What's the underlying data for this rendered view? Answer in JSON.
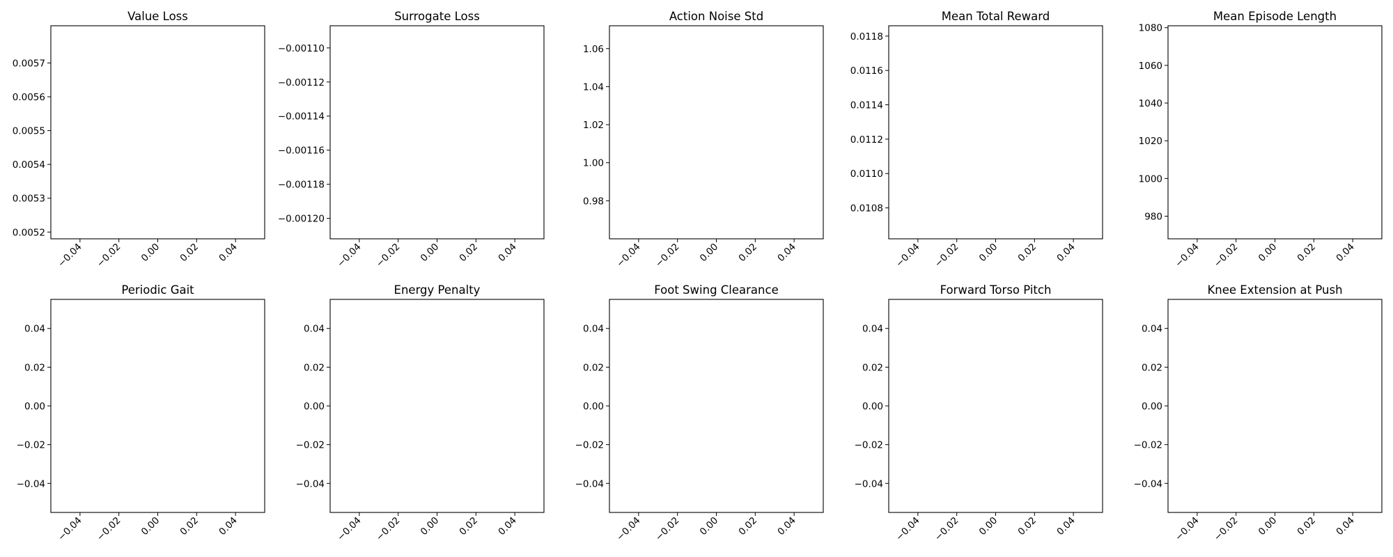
{
  "chart_data": [
    {
      "type": "line",
      "title": "Value Loss",
      "series": [],
      "xlim": [
        -0.055,
        0.055
      ],
      "xticks": [
        "−0.04",
        "−0.02",
        "0.00",
        "0.02",
        "0.04"
      ],
      "ylim": [
        0.00518,
        0.00581
      ],
      "yticks": [
        0.0052,
        0.0053,
        0.0054,
        0.0055,
        0.0056,
        0.0057
      ],
      "ytick_labels": [
        "0.0052",
        "0.0053",
        "0.0054",
        "0.0055",
        "0.0056",
        "0.0057"
      ],
      "grid": false
    },
    {
      "type": "line",
      "title": "Surrogate Loss",
      "series": [],
      "xlim": [
        -0.055,
        0.055
      ],
      "xticks": [
        "−0.04",
        "−0.02",
        "0.00",
        "0.02",
        "0.04"
      ],
      "ylim": [
        -0.001212,
        -0.001087
      ],
      "yticks": [
        -0.0011,
        -0.00112,
        -0.00114,
        -0.00116,
        -0.00118,
        -0.0012
      ],
      "ytick_labels": [
        "−0.00110",
        "−0.00112",
        "−0.00114",
        "−0.00116",
        "−0.00118",
        "−0.00120"
      ],
      "grid": false
    },
    {
      "type": "line",
      "title": "Action Noise Std",
      "series": [],
      "xlim": [
        -0.055,
        0.055
      ],
      "xticks": [
        "−0.04",
        "−0.02",
        "0.00",
        "0.02",
        "0.04"
      ],
      "ylim": [
        0.96,
        1.072
      ],
      "yticks": [
        0.98,
        1.0,
        1.02,
        1.04,
        1.06
      ],
      "ytick_labels": [
        "0.98",
        "1.00",
        "1.02",
        "1.04",
        "1.06"
      ],
      "grid": false
    },
    {
      "type": "line",
      "title": "Mean Total Reward",
      "series": [],
      "xlim": [
        -0.055,
        0.055
      ],
      "xticks": [
        "−0.04",
        "−0.02",
        "0.00",
        "0.02",
        "0.04"
      ],
      "ylim": [
        0.01062,
        0.01186
      ],
      "yticks": [
        0.0108,
        0.011,
        0.0112,
        0.0114,
        0.0116,
        0.0118
      ],
      "ytick_labels": [
        "0.0108",
        "0.0110",
        "0.0112",
        "0.0114",
        "0.0116",
        "0.0118"
      ],
      "grid": false
    },
    {
      "type": "line",
      "title": "Mean Episode Length",
      "series": [],
      "xlim": [
        -0.055,
        0.055
      ],
      "xticks": [
        "−0.04",
        "−0.02",
        "0.00",
        "0.02",
        "0.04"
      ],
      "ylim": [
        968,
        1081
      ],
      "yticks": [
        980,
        1000,
        1020,
        1040,
        1060,
        1080
      ],
      "ytick_labels": [
        "980",
        "1000",
        "1020",
        "1040",
        "1060",
        "1080"
      ],
      "grid": false
    },
    {
      "type": "line",
      "title": "Periodic Gait",
      "series": [],
      "xlim": [
        -0.055,
        0.055
      ],
      "xticks": [
        "−0.04",
        "−0.02",
        "0.00",
        "0.02",
        "0.04"
      ],
      "ylim": [
        -0.055,
        0.055
      ],
      "yticks": [
        0.04,
        0.02,
        0.0,
        -0.02,
        -0.04
      ],
      "ytick_labels": [
        "0.04",
        "0.02",
        "0.00",
        "−0.02",
        "−0.04"
      ],
      "grid": false
    },
    {
      "type": "line",
      "title": "Energy Penalty",
      "series": [],
      "xlim": [
        -0.055,
        0.055
      ],
      "xticks": [
        "−0.04",
        "−0.02",
        "0.00",
        "0.02",
        "0.04"
      ],
      "ylim": [
        -0.055,
        0.055
      ],
      "yticks": [
        0.04,
        0.02,
        0.0,
        -0.02,
        -0.04
      ],
      "ytick_labels": [
        "0.04",
        "0.02",
        "0.00",
        "−0.02",
        "−0.04"
      ],
      "grid": false
    },
    {
      "type": "line",
      "title": "Foot Swing Clearance",
      "series": [],
      "xlim": [
        -0.055,
        0.055
      ],
      "xticks": [
        "−0.04",
        "−0.02",
        "0.00",
        "0.02",
        "0.04"
      ],
      "ylim": [
        -0.055,
        0.055
      ],
      "yticks": [
        0.04,
        0.02,
        0.0,
        -0.02,
        -0.04
      ],
      "ytick_labels": [
        "0.04",
        "0.02",
        "0.00",
        "−0.02",
        "−0.04"
      ],
      "grid": false
    },
    {
      "type": "line",
      "title": "Forward Torso Pitch",
      "series": [],
      "xlim": [
        -0.055,
        0.055
      ],
      "xticks": [
        "−0.04",
        "−0.02",
        "0.00",
        "0.02",
        "0.04"
      ],
      "ylim": [
        -0.055,
        0.055
      ],
      "yticks": [
        0.04,
        0.02,
        0.0,
        -0.02,
        -0.04
      ],
      "ytick_labels": [
        "0.04",
        "0.02",
        "0.00",
        "−0.02",
        "−0.04"
      ],
      "grid": false
    },
    {
      "type": "line",
      "title": "Knee Extension at Push",
      "series": [],
      "xlim": [
        -0.055,
        0.055
      ],
      "xticks": [
        "−0.04",
        "−0.02",
        "0.00",
        "0.02",
        "0.04"
      ],
      "ylim": [
        -0.055,
        0.055
      ],
      "yticks": [
        0.04,
        0.02,
        0.0,
        -0.02,
        -0.04
      ],
      "ytick_labels": [
        "0.04",
        "0.02",
        "0.00",
        "−0.02",
        "−0.04"
      ],
      "grid": false
    }
  ]
}
